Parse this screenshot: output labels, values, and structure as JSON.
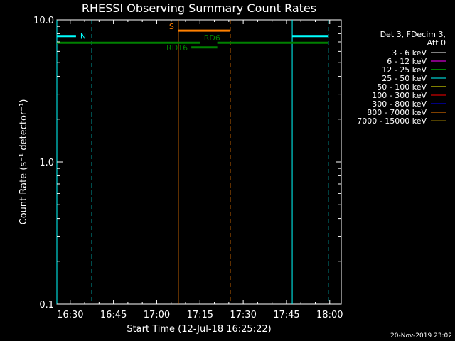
{
  "chart_data": {
    "type": "line",
    "title": "RHESSI Observing Summary Count Rates",
    "xlabel": "Start Time (12-Jul-18 16:25:22)",
    "ylabel": "Count Rate (s⁻¹ detector⁻¹)",
    "y_scale": "log",
    "ylim": [
      0.1,
      10.0
    ],
    "xlim": [
      "16:25:22",
      "18:04:00"
    ],
    "x_ticks": [
      "16:30",
      "16:45",
      "17:00",
      "17:15",
      "17:30",
      "17:45",
      "18:00"
    ],
    "y_ticks": [
      "0.1",
      "1.0",
      "10.0"
    ],
    "legend": {
      "header": [
        "Det 3, FDecim 3,",
        "Att 0"
      ],
      "placement": "right",
      "entries": [
        {
          "label": "3 - 6 keV",
          "color": "#ffffff"
        },
        {
          "label": "6 - 12 keV",
          "color": "#ff00ff"
        },
        {
          "label": "12 - 25 keV",
          "color": "#00ff00"
        },
        {
          "label": "25 - 50 keV",
          "color": "#00ffff"
        },
        {
          "label": "50 - 100 keV",
          "color": "#ffff00"
        },
        {
          "label": "100 - 300 keV",
          "color": "#ff0000"
        },
        {
          "label": "300 - 800 keV",
          "color": "#0000ff"
        },
        {
          "label": "800 - 7000 keV",
          "color": "#ff8000"
        },
        {
          "label": "7000 - 15000 keV",
          "color": "#a08000"
        }
      ]
    },
    "flag_bars": [
      {
        "label": "N",
        "color": "#00ffff",
        "value": 7.7,
        "segments": [
          [
            "16:25:22",
            "16:32:00"
          ],
          [
            "17:47:00",
            "17:59:30"
          ]
        ]
      },
      {
        "label": "S",
        "color": "#ff8000",
        "value": 8.4,
        "segments": [
          [
            "17:07:30",
            "17:25:30"
          ]
        ]
      },
      {
        "label": "RD6",
        "color": "#008000",
        "value": 6.9,
        "segments": [
          [
            "16:25:22",
            "17:15:00"
          ],
          [
            "17:21:00",
            "17:59:30"
          ]
        ]
      },
      {
        "label": "RD16",
        "color": "#008000",
        "value": 6.4,
        "segments": [
          [
            "17:12:00",
            "17:21:00"
          ]
        ]
      }
    ],
    "vlines": [
      {
        "time": "16:25:22",
        "color": "#00ffff",
        "style": "solid"
      },
      {
        "time": "16:37:30",
        "color": "#00ffff",
        "style": "dashed"
      },
      {
        "time": "17:47:00",
        "color": "#00ffff",
        "style": "solid"
      },
      {
        "time": "17:59:30",
        "color": "#00ffff",
        "style": "dashed"
      },
      {
        "time": "17:07:30",
        "color": "#ff8000",
        "style": "solid"
      },
      {
        "time": "17:25:30",
        "color": "#ff8000",
        "style": "dashed"
      }
    ],
    "footer": "20-Nov-2019 23:02"
  }
}
